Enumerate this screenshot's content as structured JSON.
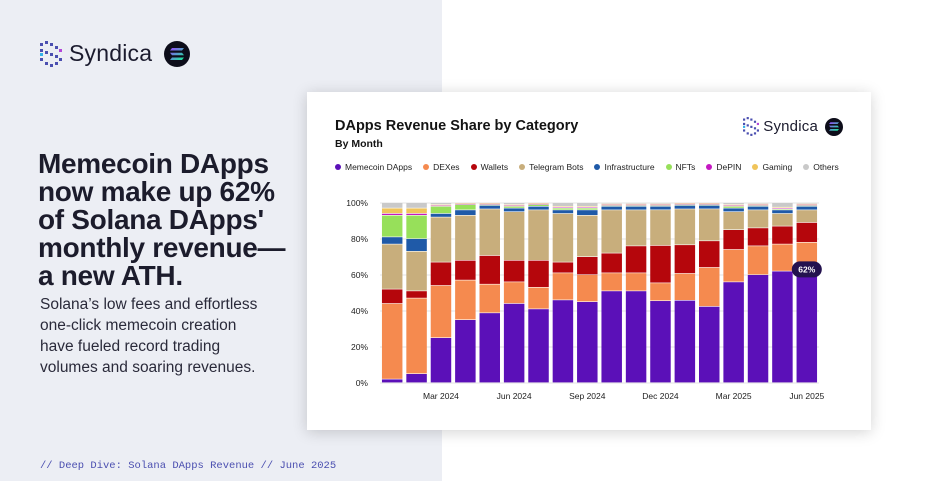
{
  "brand": {
    "name": "Syndica"
  },
  "headline": [
    "Memecoin DApps",
    "now make up 62%",
    "of Solana DApps'",
    "monthly revenue—",
    "a new ATH."
  ],
  "subtext": [
    "Solana’s low fees and effortless",
    "one-click memecoin creation",
    "have fueled record trading",
    "volumes and soaring revenues."
  ],
  "footer": "// Deep Dive: Solana DApps Revenue // June 2025",
  "card": {
    "brand_name": "Syndica"
  },
  "chart_data": {
    "type": "bar",
    "stacked": "percent",
    "title": "DApps Revenue Share by Category",
    "subtitle": "By Month",
    "xlabel": "",
    "ylabel": "",
    "ylim": [
      0,
      100
    ],
    "y_ticks": [
      "0%",
      "20%",
      "40%",
      "60%",
      "80%",
      "100%"
    ],
    "grid": true,
    "legend_position": "top",
    "categories": [
      "Jan 2024",
      "Feb 2024",
      "Mar 2024",
      "Apr 2024",
      "May 2024",
      "Jun 2024",
      "Jul 2024",
      "Aug 2024",
      "Sep 2024",
      "Oct 2024",
      "Nov 2024",
      "Dec 2024",
      "Jan 2025",
      "Feb 2025",
      "Mar 2025",
      "Apr 2025",
      "May 2025",
      "Jun 2025"
    ],
    "x_tick_labels": [
      "Mar 2024",
      "Jun 2024",
      "Sep 2024",
      "Dec 2024",
      "Mar 2025",
      "Jun 2025"
    ],
    "annotation": {
      "text": "62%",
      "category": "Jun 2025"
    },
    "series": [
      {
        "name": "Memecoin DApps",
        "color": "#5b10b8",
        "values": [
          2,
          5,
          25,
          35,
          39,
          44,
          41,
          46,
          45,
          51,
          51,
          46,
          46,
          43,
          56,
          60,
          62,
          62
        ]
      },
      {
        "name": "DEXes",
        "color": "#f58a4f",
        "values": [
          42,
          42,
          29,
          22,
          16,
          12,
          12,
          15,
          15,
          10,
          10,
          10,
          15,
          22,
          18,
          16,
          15,
          16
        ]
      },
      {
        "name": "Wallets",
        "color": "#b5060c",
        "values": [
          8,
          4,
          13,
          11,
          16,
          12,
          15,
          6,
          10,
          11,
          15,
          21,
          16,
          15,
          11,
          10,
          10,
          11
        ]
      },
      {
        "name": "Telegram Bots",
        "color": "#c8ae7c",
        "values": [
          25,
          22,
          25,
          25,
          26,
          27,
          28,
          27,
          23,
          24,
          20,
          20,
          20,
          18,
          10,
          10,
          7,
          7
        ]
      },
      {
        "name": "Infrastructure",
        "color": "#1f5aa8",
        "values": [
          4,
          7,
          2,
          3,
          2,
          2,
          2,
          2,
          3,
          2,
          2,
          2,
          2,
          2,
          2,
          2,
          2,
          2
        ]
      },
      {
        "name": "NFTs",
        "color": "#97e05a",
        "values": [
          12,
          13,
          4,
          3,
          0.5,
          1,
          1,
          1,
          1,
          0.5,
          0.5,
          0.5,
          0.5,
          0.5,
          1,
          0.5,
          0.5,
          0.5
        ]
      },
      {
        "name": "DePIN",
        "color": "#c517c2",
        "values": [
          1,
          1,
          0.5,
          0.5,
          0.5,
          0.5,
          0.5,
          0.5,
          0.5,
          0.5,
          0.5,
          0.5,
          0.5,
          0.5,
          0.5,
          0.5,
          0.5,
          0.5
        ]
      },
      {
        "name": "Gaming",
        "color": "#f0c45a",
        "values": [
          3,
          3,
          0.5,
          0.5,
          0.5,
          0.5,
          0.5,
          0.5,
          0.5,
          0.5,
          0.5,
          0.5,
          0.5,
          0.5,
          0.5,
          0.5,
          0.5,
          0.5
        ]
      },
      {
        "name": "Others",
        "color": "#c9c9c9",
        "values": [
          3,
          3,
          1,
          0,
          0,
          1,
          0,
          2,
          2,
          0.5,
          0.5,
          0.5,
          0,
          0,
          1,
          0.5,
          2.5,
          0.5
        ]
      }
    ]
  }
}
